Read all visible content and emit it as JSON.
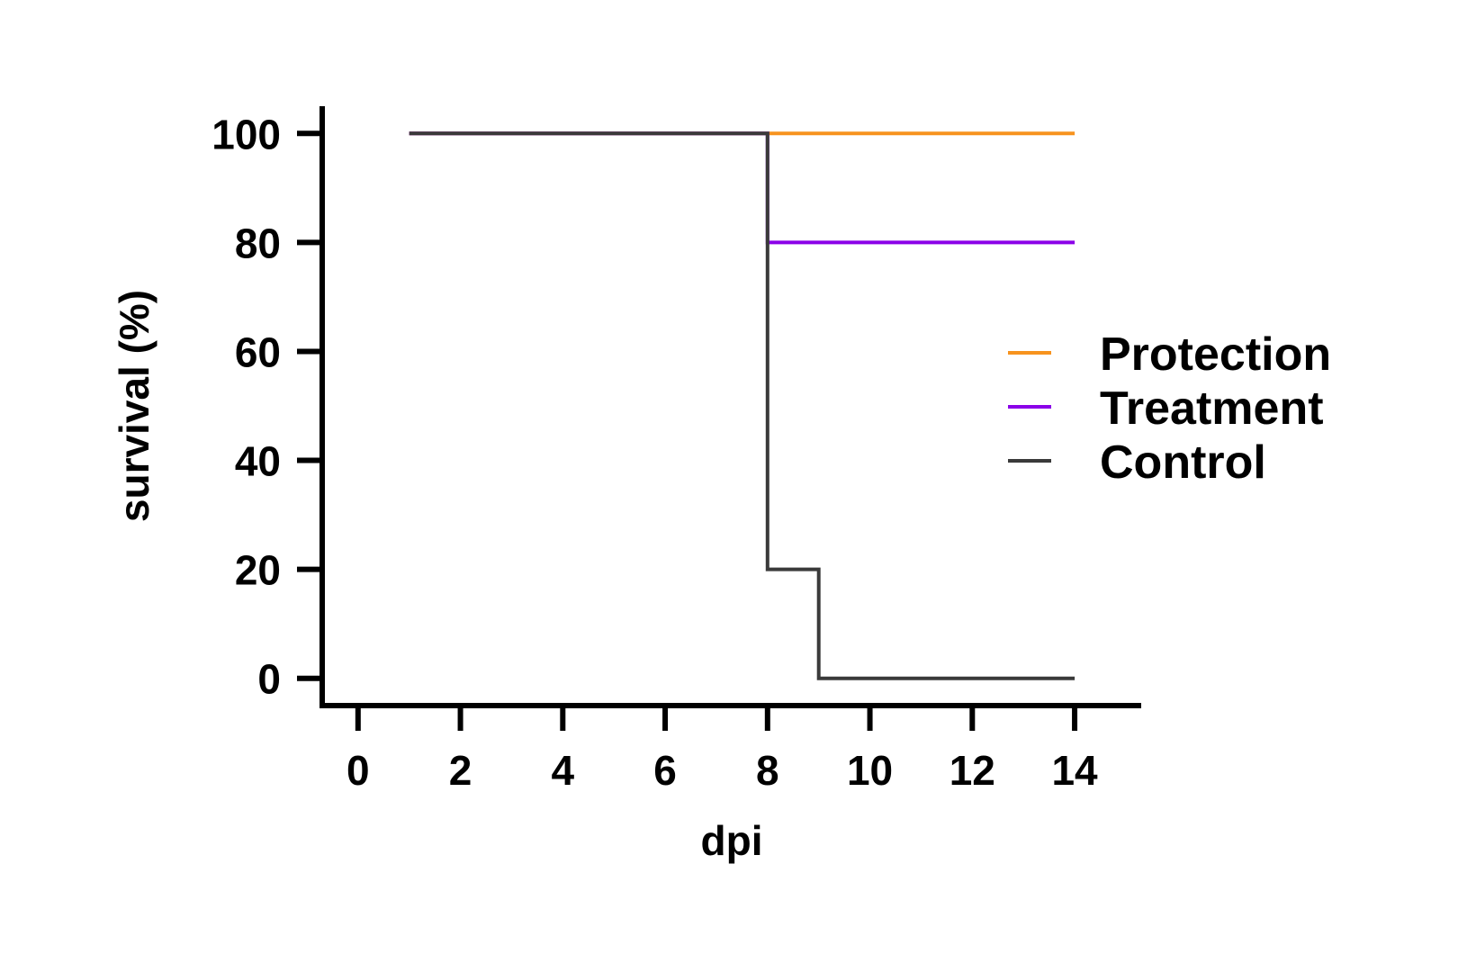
{
  "chart_data": {
    "type": "line",
    "step": true,
    "xlabel": "dpi",
    "ylabel": "survival (%)",
    "xlim": [
      -0.7,
      15.3
    ],
    "ylim": [
      -5,
      105
    ],
    "xticks": [
      0,
      2,
      4,
      6,
      8,
      10,
      12,
      14
    ],
    "yticks": [
      0,
      20,
      40,
      60,
      80,
      100
    ],
    "legend_position": "right",
    "grid": false,
    "series": [
      {
        "name": "Protection",
        "color": "#F7931E",
        "x": [
          1,
          8,
          14
        ],
        "y": [
          100,
          100,
          100
        ]
      },
      {
        "name": "Treatment",
        "color": "#8B00E8",
        "x": [
          1,
          8,
          8,
          14
        ],
        "y": [
          100,
          100,
          80,
          80
        ]
      },
      {
        "name": "Control",
        "color": "#3A3A3A",
        "x": [
          1,
          8,
          8,
          9,
          9,
          14
        ],
        "y": [
          100,
          100,
          20,
          20,
          0,
          0
        ]
      }
    ]
  }
}
